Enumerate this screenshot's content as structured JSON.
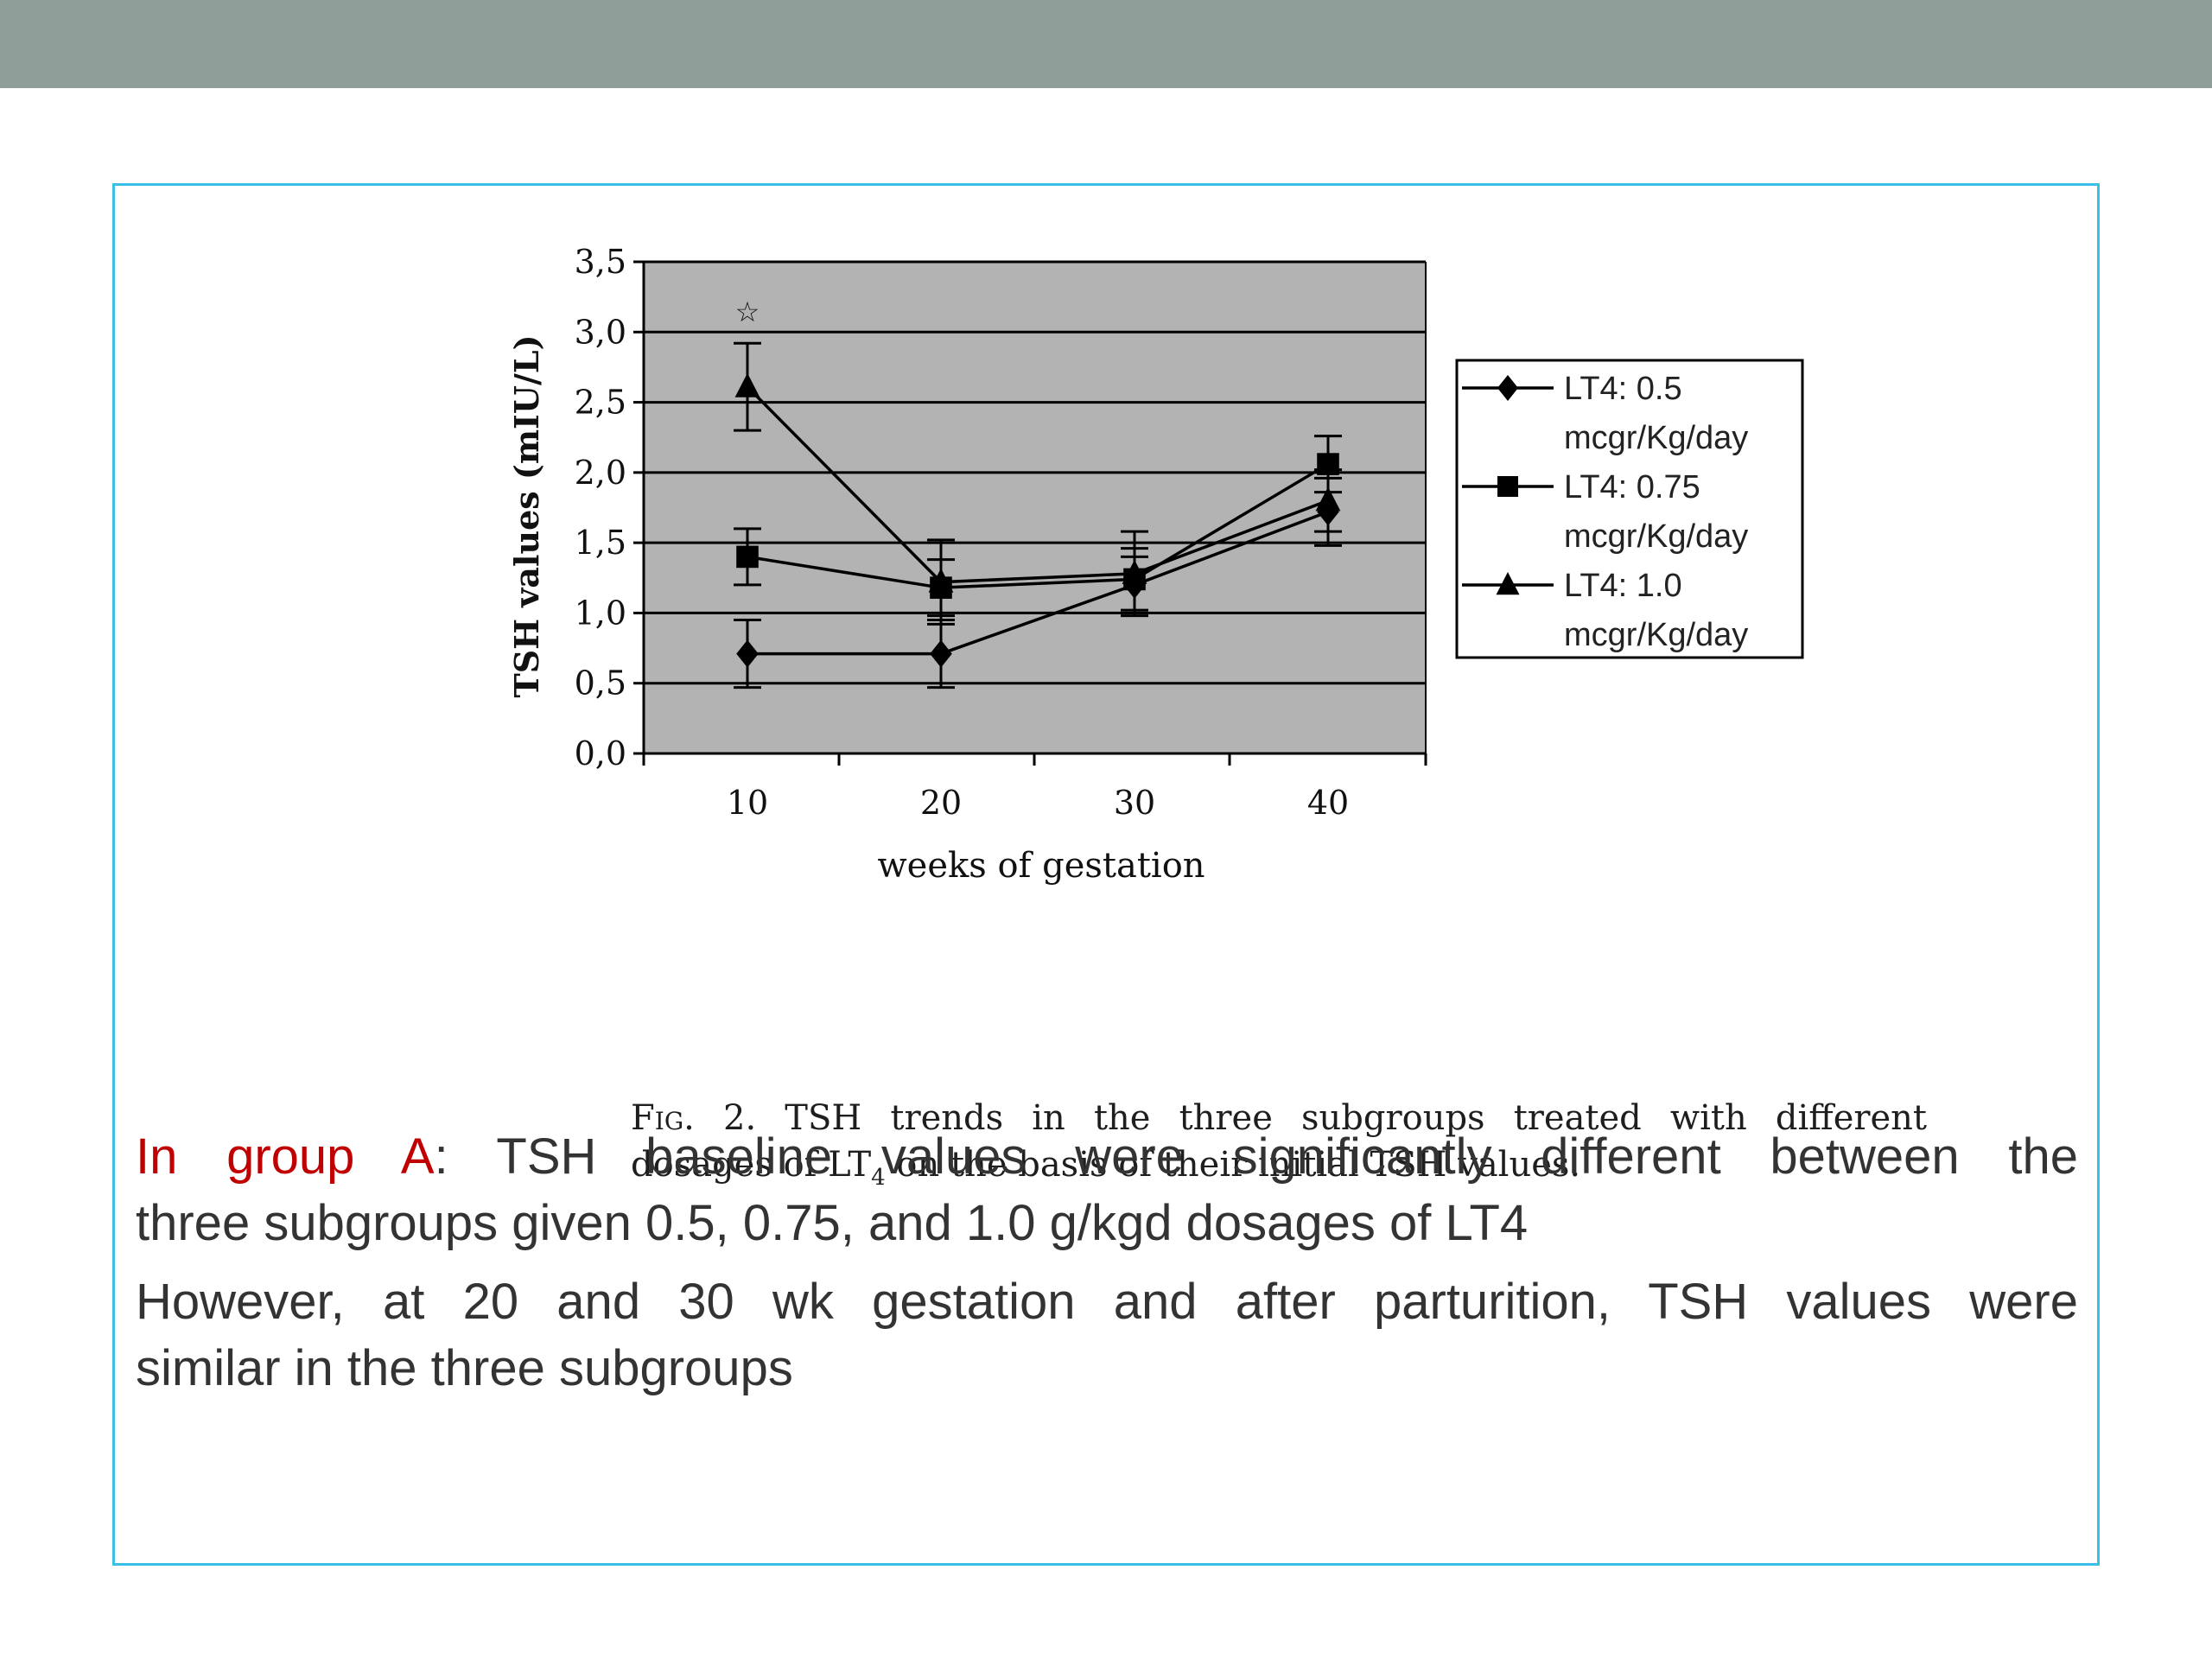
{
  "slide": {
    "paragraphs": [
      {
        "highlight": "In group A",
        "line1_rest": ": TSH baseline values were significantly different between the",
        "line2": "three subgroups given 0.5, 0.75, and 1.0 g/kgd dosages of LT4"
      },
      {
        "line1": "However, at 20 and 30 wk gestation and after parturition, TSH values were",
        "line2": "similar in the three subgroups"
      }
    ],
    "caption": {
      "fig_label": "Fig.",
      "line1_rest": " 2. TSH trends in the three subgroups treated with different",
      "line2_pre": "dosages of LT",
      "line2_sub": "4",
      "line2_post": " on the basis of their initial TSH values."
    },
    "colors": {
      "top_bar": "#8f9e98",
      "frame_border": "#39bfe6",
      "highlight_text": "#c00000",
      "plot_background": "#b3b3b3"
    }
  },
  "chart_data": {
    "type": "line",
    "title": "",
    "xlabel": "weeks of gestation",
    "ylabel": "TSH values (mIU/L)",
    "x": [
      10,
      20,
      30,
      40
    ],
    "x_tick_labels": [
      "10",
      "20",
      "30",
      "40"
    ],
    "ylim": [
      0,
      3.5
    ],
    "y_ticks": [
      0,
      0.5,
      1,
      1.5,
      2,
      2.5,
      3,
      3.5
    ],
    "y_tick_labels": [
      "0,0",
      "0,5",
      "1,0",
      "1,5",
      "2,0",
      "2,5",
      "3,0",
      "3,5"
    ],
    "grid": true,
    "legend_position": "right",
    "series": [
      {
        "name": "LT4: 0.5 mcgr/Kg/day",
        "legend_lines": [
          "LT4: 0.5",
          "mcgr/Kg/day"
        ],
        "marker": "diamond",
        "values": [
          0.71,
          0.71,
          1.2,
          1.72
        ],
        "error": [
          0.24,
          0.24,
          0.2,
          0.24
        ]
      },
      {
        "name": "LT4: 0.75 mcgr/Kg/day",
        "legend_lines": [
          "LT4: 0.75",
          "mcgr/Kg/day"
        ],
        "marker": "square",
        "values": [
          1.4,
          1.18,
          1.24,
          2.06
        ],
        "error": [
          0.2,
          0.2,
          0.22,
          0.2
        ]
      },
      {
        "name": "LT4: 1.0 mcgr/Kg/day",
        "legend_lines": [
          "LT4: 1.0",
          "mcgr/Kg/day"
        ],
        "marker": "triangle",
        "values": [
          2.61,
          1.22,
          1.28,
          1.8
        ],
        "error": [
          0.31,
          0.3,
          0.3,
          0.22
        ]
      }
    ],
    "annotations": [
      {
        "x": 10,
        "y": 3.15,
        "text": "☆"
      }
    ]
  }
}
